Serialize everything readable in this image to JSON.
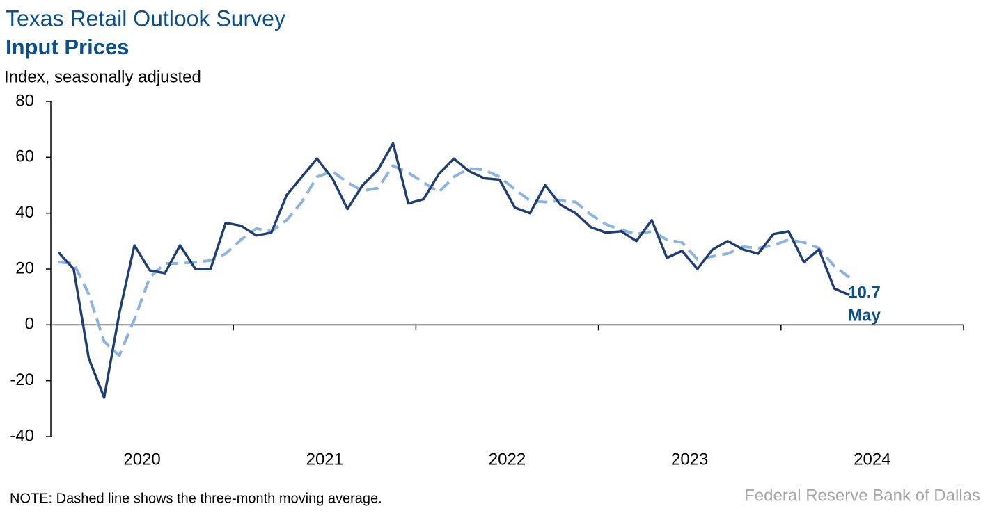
{
  "chart_data": {
    "type": "line",
    "title": "Texas Retail Outlook Survey",
    "subtitle": "Input Prices",
    "y_label": "Index, seasonally adjusted",
    "note": "NOTE: Dashed line shows the three-month moving average.",
    "source": "Federal Reserve Bank of Dallas",
    "annotation": "May",
    "year_labels": [
      "2020",
      "2021",
      "2022",
      "2023",
      "2024"
    ],
    "xlim": [
      2020,
      2025
    ],
    "xticks": [
      2021,
      2022,
      2023,
      2024,
      2025
    ],
    "ylim": [
      -40,
      80
    ],
    "yticks": [
      -40,
      -20,
      0,
      20,
      40,
      60,
      80
    ],
    "x": [
      2020.042,
      2020.125,
      2020.208,
      2020.292,
      2020.375,
      2020.458,
      2020.542,
      2020.625,
      2020.708,
      2020.792,
      2020.875,
      2020.958,
      2021.042,
      2021.125,
      2021.208,
      2021.292,
      2021.375,
      2021.458,
      2021.542,
      2021.625,
      2021.708,
      2021.792,
      2021.875,
      2021.958,
      2022.042,
      2022.125,
      2022.208,
      2022.292,
      2022.375,
      2022.458,
      2022.542,
      2022.625,
      2022.708,
      2022.792,
      2022.875,
      2022.958,
      2023.042,
      2023.125,
      2023.208,
      2023.292,
      2023.375,
      2023.458,
      2023.542,
      2023.625,
      2023.708,
      2023.792,
      2023.875,
      2023.958,
      2024.042,
      2024.125,
      2024.208,
      2024.292,
      2024.375
    ],
    "series": [
      {
        "color": "#8db3e2",
        "dashed": true,
        "values": [
          22.5,
          22,
          11,
          -6,
          -11,
          2,
          17,
          22,
          22,
          22.5,
          23,
          25.5,
          30.5,
          34.5,
          33.5,
          37.5,
          44,
          53,
          55,
          51,
          48,
          49,
          57,
          54.5,
          51,
          47.5,
          53,
          56,
          55.5,
          53,
          48.5,
          44.5,
          44,
          44.5,
          44,
          39.5,
          36,
          34,
          32.5,
          33.5,
          30.5,
          29.5,
          23.5,
          24.5,
          25.5,
          28,
          27.5,
          28.5,
          30.5,
          29.5,
          27.5,
          21,
          17
        ]
      },
      {
        "color": "#1f3f73",
        "dashed": false,
        "values": [
          26,
          20,
          -12,
          -26,
          4,
          28.5,
          19.5,
          18.5,
          28.5,
          20,
          20,
          36.5,
          35.5,
          32,
          33,
          46.5,
          53,
          59.5,
          52.5,
          41.5,
          50,
          55.5,
          65,
          43.5,
          45,
          54,
          59.5,
          55,
          52.5,
          52,
          42,
          40,
          50,
          43,
          40,
          35,
          33,
          33.5,
          30,
          37.5,
          24,
          26.5,
          20,
          27,
          30,
          27,
          25.5,
          32.5,
          33.5,
          22.5,
          27,
          13,
          10.7
        ],
        "value_labels": [
          null,
          null,
          null,
          null,
          null,
          null,
          null,
          null,
          null,
          null,
          null,
          null,
          null,
          null,
          null,
          null,
          null,
          null,
          null,
          null,
          null,
          null,
          null,
          null,
          null,
          null,
          null,
          null,
          null,
          null,
          null,
          null,
          null,
          null,
          null,
          null,
          null,
          null,
          null,
          null,
          null,
          null,
          null,
          null,
          null,
          null,
          null,
          null,
          null,
          null,
          null,
          null,
          "10.7"
        ]
      }
    ]
  }
}
